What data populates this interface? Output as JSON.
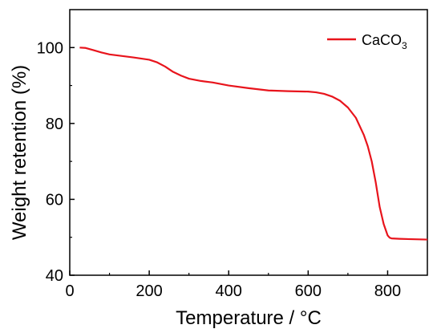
{
  "chart_data": {
    "type": "line",
    "xlabel": "Temperature / °C",
    "ylabel": "Weight retention (%)",
    "xlim": [
      0,
      900
    ],
    "ylim": [
      40,
      110
    ],
    "xticks": [
      0,
      200,
      400,
      600,
      800
    ],
    "yticks": [
      40,
      60,
      80,
      100
    ],
    "grid": false,
    "legend_position": "top-right",
    "legend": {
      "base": "CaCO",
      "subscript": "3"
    },
    "series": [
      {
        "name": "CaCO3",
        "color": "#e8141c",
        "x": [
          25,
          40,
          60,
          80,
          100,
          130,
          160,
          200,
          220,
          240,
          260,
          280,
          300,
          330,
          360,
          400,
          450,
          500,
          550,
          600,
          620,
          640,
          660,
          680,
          700,
          720,
          740,
          750,
          760,
          770,
          780,
          790,
          800,
          805,
          810,
          830,
          860,
          900
        ],
        "y": [
          100.0,
          99.9,
          99.3,
          98.7,
          98.2,
          97.8,
          97.4,
          96.8,
          96.1,
          95.0,
          93.6,
          92.6,
          91.8,
          91.2,
          90.8,
          90.0,
          89.3,
          88.7,
          88.5,
          88.4,
          88.2,
          87.8,
          87.1,
          86.0,
          84.2,
          81.5,
          77.0,
          74.0,
          70.0,
          64.5,
          58.0,
          53.5,
          50.5,
          49.9,
          49.7,
          49.6,
          49.5,
          49.4
        ]
      }
    ]
  }
}
